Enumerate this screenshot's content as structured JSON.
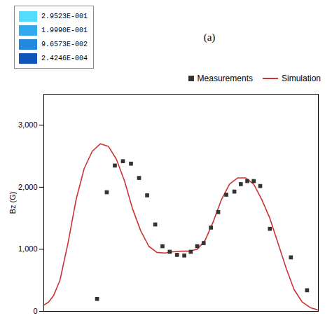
{
  "chart_data": {
    "type": "line",
    "annotations": [
      "(a)"
    ],
    "ylabel": "Bz (G)",
    "xlim": [
      0,
      17
    ],
    "ylim": [
      0,
      3500
    ],
    "yticks": [
      0,
      1000,
      2000,
      3000
    ],
    "tick_labels": "y",
    "grid": false,
    "legend": "upper right",
    "series": [
      {
        "name": "Measurements",
        "type": "scatter",
        "color": "#333333",
        "marker": "square",
        "x": [
          3.3,
          3.9,
          4.4,
          4.9,
          5.4,
          5.9,
          6.4,
          6.9,
          7.35,
          7.8,
          8.25,
          8.7,
          9.1,
          9.5,
          9.9,
          10.35,
          10.8,
          11.3,
          11.8,
          12.2,
          12.6,
          13.0,
          13.4,
          14.0,
          15.3,
          16.3
        ],
        "values": [
          200,
          1920,
          2350,
          2420,
          2380,
          2150,
          1870,
          1400,
          1050,
          960,
          910,
          900,
          960,
          1050,
          1100,
          1350,
          1600,
          1880,
          1930,
          2050,
          2100,
          2100,
          2020,
          1330,
          870,
          340
        ]
      },
      {
        "name": "Simulation",
        "type": "line",
        "color": "#cc3333",
        "line_style": "solid",
        "x": [
          0.0,
          0.3,
          0.6,
          1.0,
          1.5,
          2.0,
          2.5,
          3.0,
          3.5,
          4.0,
          4.5,
          5.0,
          5.5,
          6.0,
          6.5,
          7.0,
          7.5,
          8.0,
          8.5,
          9.0,
          9.5,
          10.0,
          10.5,
          11.0,
          11.5,
          12.0,
          12.5,
          13.0,
          13.5,
          14.0,
          14.5,
          15.0,
          15.5,
          16.0,
          16.5,
          17.0
        ],
        "values": [
          100,
          150,
          250,
          500,
          1100,
          1800,
          2300,
          2580,
          2700,
          2660,
          2450,
          2100,
          1650,
          1300,
          1050,
          950,
          940,
          960,
          970,
          970,
          1000,
          1150,
          1450,
          1800,
          2050,
          2150,
          2150,
          2050,
          1800,
          1500,
          1100,
          700,
          350,
          150,
          60,
          20
        ]
      }
    ],
    "colorbar": {
      "colors": [
        "#55ddff",
        "#33aaee",
        "#2288dd",
        "#1155bb"
      ],
      "labels": [
        "2.9523E-001",
        "1.9990E-001",
        "9.6573E-002",
        "2.4246E-004"
      ]
    }
  }
}
